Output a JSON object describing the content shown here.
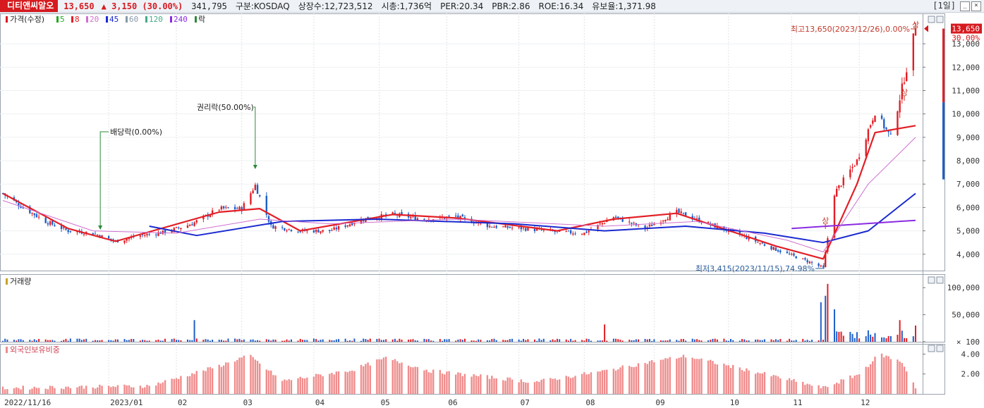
{
  "header": {
    "stock_name": "디티앤씨알오",
    "price": "13,650",
    "change": "3,150",
    "change_pct": "(30.00%)",
    "volume": "341,795",
    "market": "구분:KOSDAQ",
    "shares": "상장수:12,723,512",
    "market_cap": "시총:1,736억",
    "per": "PER:20.34",
    "pbr": "PBR:2.86",
    "roe": "ROE:16.34",
    "float": "유보율:1,371.98",
    "period": "[1일]",
    "up_color": "#d61a1f"
  },
  "legend": {
    "price_label": "가격(수정)",
    "ma": [
      {
        "label": "5",
        "color": "#22aa22"
      },
      {
        "label": "8",
        "color": "#e21f26"
      },
      {
        "label": "20",
        "color": "#d070d0"
      },
      {
        "label": "45",
        "color": "#1a2ad0"
      },
      {
        "label": "60",
        "color": "#8899aa"
      },
      {
        "label": "120",
        "color": "#44aa88"
      },
      {
        "label": "240",
        "color": "#8a2be2"
      }
    ],
    "event_label": "락"
  },
  "annotations": {
    "high": "최고13,650(2023/12/26),0.00%",
    "low": "최저3,415(2023/11/15),74.98%",
    "dividend": "배당락(0.00%)",
    "rights": "권리락(50.00%)",
    "limit_up": "상",
    "current_price_tag": "13,650",
    "current_pct_tag": "30.00%"
  },
  "chart_data": [
    {
      "type": "line",
      "title": "가격(수정)",
      "x_labels": [
        "2022/11/16",
        "2023/01",
        "02",
        "03",
        "04",
        "05",
        "06",
        "07",
        "08",
        "09",
        "10",
        "11",
        "12"
      ],
      "y_ticks": [
        4000,
        5000,
        6000,
        7000,
        8000,
        9000,
        10000,
        11000,
        12000,
        13000
      ],
      "y_tick_labels": [
        "4,000",
        "5,000",
        "6,000",
        "7,000",
        "8,000",
        "9,000",
        "10,000",
        "11,000",
        "12,000",
        "13,000"
      ],
      "ylim": [
        3300,
        14300
      ],
      "close_path_points": [
        [
          "2022-11-16",
          6600
        ],
        [
          "2022-11-25",
          6000
        ],
        [
          "2022-12-05",
          5400
        ],
        [
          "2022-12-15",
          5000
        ],
        [
          "2022-12-26",
          4900
        ],
        [
          "2023-01-05",
          4550
        ],
        [
          "2023-01-16",
          4800
        ],
        [
          "2023-01-27",
          4950
        ],
        [
          "2023-02-08",
          5300
        ],
        [
          "2023-02-20",
          5950
        ],
        [
          "2023-03-02",
          5950
        ],
        [
          "2023-03-08",
          6950
        ],
        [
          "2023-03-15",
          5200
        ],
        [
          "2023-03-28",
          5000
        ],
        [
          "2023-04-10",
          5000
        ],
        [
          "2023-04-25",
          5500
        ],
        [
          "2023-05-08",
          5700
        ],
        [
          "2023-05-22",
          5500
        ],
        [
          "2023-06-05",
          5600
        ],
        [
          "2023-06-20",
          5200
        ],
        [
          "2023-07-05",
          5100
        ],
        [
          "2023-07-20",
          4950
        ],
        [
          "2023-08-01",
          4900
        ],
        [
          "2023-08-14",
          5600
        ],
        [
          "2023-08-28",
          5100
        ],
        [
          "2023-09-11",
          5800
        ],
        [
          "2023-09-25",
          5300
        ],
        [
          "2023-10-10",
          4800
        ],
        [
          "2023-10-25",
          4200
        ],
        [
          "2023-11-08",
          3700
        ],
        [
          "2023-11-15",
          3415
        ],
        [
          "2023-11-20",
          6600
        ],
        [
          "2023-11-30",
          8000
        ],
        [
          "2023-12-08",
          10100
        ],
        [
          "2023-12-15",
          9000
        ],
        [
          "2023-12-26",
          13650
        ]
      ],
      "ma_paths": [
        {
          "name": "8",
          "points": [
            [
              "2022-11-16",
              6600
            ],
            [
              "2022-12-15",
              5100
            ],
            [
              "2023-01-05",
              4550
            ],
            [
              "2023-02-20",
              5800
            ],
            [
              "2023-03-10",
              5950
            ],
            [
              "2023-03-28",
              5000
            ],
            [
              "2023-05-08",
              5700
            ],
            [
              "2023-06-05",
              5550
            ],
            [
              "2023-07-20",
              5000
            ],
            [
              "2023-08-14",
              5500
            ],
            [
              "2023-09-11",
              5750
            ],
            [
              "2023-10-25",
              4350
            ],
            [
              "2023-11-15",
              3800
            ],
            [
              "2023-11-30",
              7000
            ],
            [
              "2023-12-08",
              9200
            ],
            [
              "2023-12-26",
              9500
            ]
          ]
        },
        {
          "name": "45",
          "points": [
            [
              "2023-01-20",
              5200
            ],
            [
              "2023-02-10",
              4800
            ],
            [
              "2023-03-20",
              5400
            ],
            [
              "2023-05-01",
              5500
            ],
            [
              "2023-07-01",
              5300
            ],
            [
              "2023-08-10",
              5000
            ],
            [
              "2023-09-15",
              5200
            ],
            [
              "2023-10-20",
              4900
            ],
            [
              "2023-11-15",
              4500
            ],
            [
              "2023-12-05",
              5000
            ],
            [
              "2023-12-26",
              6600
            ]
          ]
        },
        {
          "name": "240",
          "points": [
            [
              "2023-11-01",
              5100
            ],
            [
              "2023-12-26",
              5450
            ]
          ]
        }
      ]
    },
    {
      "type": "bar",
      "title": "거래량",
      "y_ticks": [
        100,
        50000,
        100000
      ],
      "y_tick_labels": [
        "× 100",
        "50,000",
        "100,000"
      ],
      "ylim": [
        0,
        112000
      ],
      "spikes": [
        [
          "2023-02-09",
          40000
        ],
        [
          "2023-08-10",
          32000
        ],
        [
          "2023-11-14",
          73000
        ],
        [
          "2023-11-16",
          85000
        ],
        [
          "2023-11-17",
          107000
        ],
        [
          "2023-11-20",
          60000
        ],
        [
          "2023-12-19",
          40000
        ],
        [
          "2023-12-26",
          30000
        ]
      ]
    },
    {
      "type": "bar",
      "title": "외국인보유비중",
      "y_ticks": [
        2,
        4
      ],
      "y_tick_labels": [
        "2.00",
        "4.00"
      ],
      "ylim": [
        0,
        4.6
      ]
    }
  ]
}
